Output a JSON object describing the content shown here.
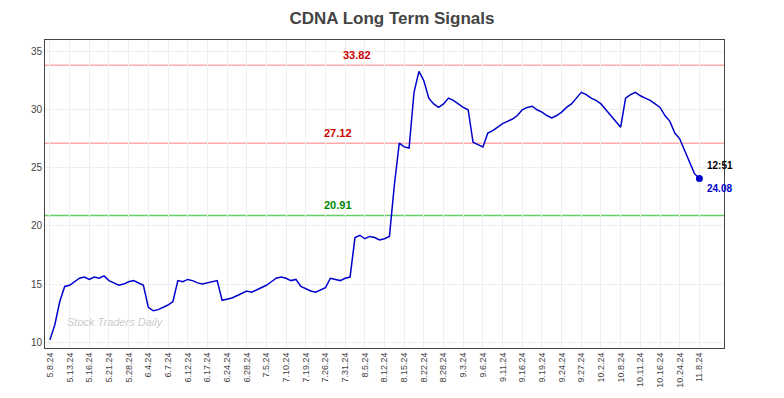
{
  "chart_data": {
    "type": "line",
    "title": "CDNA Long Term Signals",
    "categories": [
      "5.8.24",
      null,
      null,
      null,
      "5.13.24",
      null,
      null,
      null,
      "5.16.24",
      null,
      null,
      null,
      "5.21.24",
      null,
      null,
      null,
      "5.28.24",
      null,
      null,
      null,
      "6.4.24",
      null,
      null,
      null,
      "6.7.24",
      null,
      null,
      null,
      "6.12.24",
      null,
      null,
      null,
      "6.17.24",
      null,
      null,
      null,
      "6.24.24",
      null,
      null,
      null,
      "6.28.24",
      null,
      null,
      null,
      "7.5.24",
      null,
      null,
      null,
      "7.10.24",
      null,
      null,
      null,
      "7.19.24",
      null,
      null,
      null,
      "7.26.24",
      null,
      null,
      null,
      "7.31.24",
      null,
      null,
      null,
      "8.5.24",
      null,
      null,
      null,
      "8.12.24",
      null,
      null,
      null,
      "8.15.24",
      null,
      null,
      null,
      "8.22.24",
      null,
      null,
      null,
      "8.28.24",
      null,
      null,
      null,
      "9.3.24",
      null,
      null,
      null,
      "9.6.24",
      null,
      null,
      null,
      "9.11.24",
      null,
      null,
      null,
      "9.16.24",
      null,
      null,
      null,
      "9.19.24",
      null,
      null,
      null,
      "9.24.24",
      null,
      null,
      null,
      "9.27.24",
      null,
      null,
      null,
      "10.2.24",
      null,
      null,
      null,
      "10.8.24",
      null,
      null,
      null,
      "10.11.24",
      null,
      null,
      null,
      "10.16.24",
      null,
      null,
      null,
      "10.24.24",
      null,
      null,
      null,
      "11.8.24"
    ],
    "values": [
      10.2,
      11.5,
      13.5,
      14.8,
      14.9,
      15.2,
      15.5,
      15.6,
      15.4,
      15.6,
      15.5,
      15.7,
      15.3,
      15.1,
      14.9,
      15.0,
      15.2,
      15.3,
      15.1,
      14.9,
      13.0,
      12.7,
      12.8,
      13.0,
      13.2,
      13.5,
      15.3,
      15.2,
      15.4,
      15.3,
      15.1,
      15.0,
      15.1,
      15.2,
      15.3,
      13.6,
      13.7,
      13.8,
      14.0,
      14.2,
      14.4,
      14.3,
      14.5,
      14.7,
      14.9,
      15.2,
      15.5,
      15.6,
      15.5,
      15.3,
      15.4,
      14.8,
      14.6,
      14.4,
      14.3,
      14.5,
      14.7,
      15.5,
      15.4,
      15.3,
      15.5,
      15.6,
      19.0,
      19.2,
      18.9,
      19.1,
      19.0,
      18.8,
      18.9,
      19.1,
      23.5,
      27.12,
      26.8,
      26.7,
      31.5,
      33.3,
      32.5,
      31.0,
      30.5,
      30.2,
      30.5,
      31.0,
      30.8,
      30.5,
      30.2,
      30.0,
      27.2,
      27.0,
      26.8,
      28.0,
      28.2,
      28.5,
      28.8,
      29.0,
      29.2,
      29.5,
      30.0,
      30.2,
      30.3,
      30.0,
      29.8,
      29.5,
      29.3,
      29.5,
      29.8,
      30.2,
      30.5,
      31.0,
      31.5,
      31.3,
      31.0,
      30.8,
      30.5,
      30.0,
      29.5,
      29.0,
      28.5,
      31.0,
      31.3,
      31.5,
      31.2,
      31.0,
      30.8,
      30.5,
      30.2,
      29.5,
      29.0,
      28.0,
      27.5,
      26.5,
      25.5,
      24.5,
      24.08
    ],
    "color": "#0000cc",
    "ylim": [
      9.5,
      36.0
    ],
    "yticks": [
      10,
      15,
      20,
      25,
      30,
      35
    ],
    "grid": true,
    "reference_lines": [
      {
        "value": 33.82,
        "color": "#ffaaaa",
        "label": "33.82",
        "label_color": "#cc0000"
      },
      {
        "value": 27.12,
        "color": "#ffaaaa",
        "label": "27.12",
        "label_color": "#cc0000"
      },
      {
        "value": 20.91,
        "color": "#66cc66",
        "label": "20.91",
        "label_color": "#008800"
      }
    ],
    "last_point": {
      "value": 24.08,
      "time_label": "12:51",
      "price_label": "24.08"
    },
    "watermark": "Stock Traders Daily",
    "watermark_color": "#cccccc"
  }
}
